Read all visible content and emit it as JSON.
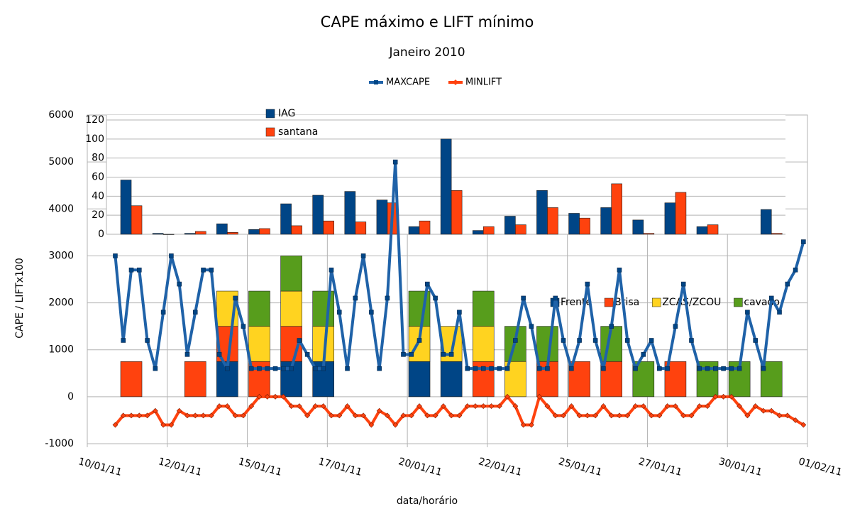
{
  "chart_data": [
    {
      "type": "line",
      "title": "CAPE máximo e LIFT mínimo",
      "subtitle": "Janeiro 2010",
      "x_label": "data/horário",
      "y_label": "CAPE / LIFTx100",
      "xlim": [
        10,
        32.5
      ],
      "xticks": [
        {
          "value": 10,
          "label": "10/01/11"
        },
        {
          "value": 12.5,
          "label": "12/01/11"
        },
        {
          "value": 15,
          "label": "15/01/11"
        },
        {
          "value": 17.5,
          "label": "17/01/11"
        },
        {
          "value": 20,
          "label": "20/01/11"
        },
        {
          "value": 22.5,
          "label": "22/01/11"
        },
        {
          "value": 25,
          "label": "25/01/11"
        },
        {
          "value": 27.5,
          "label": "27/01/11"
        },
        {
          "value": 30,
          "label": "30/01/11"
        },
        {
          "value": 32.5,
          "label": "01/02/11"
        }
      ],
      "ylim": [
        -1000,
        6000
      ],
      "yticks": [
        -1000,
        0,
        1000,
        2000,
        3000,
        4000,
        5000,
        6000
      ],
      "grid": true,
      "x": [
        10.875,
        11.125,
        11.375,
        11.625,
        11.875,
        12.125,
        12.375,
        12.625,
        12.875,
        13.125,
        13.375,
        13.625,
        13.875,
        14.125,
        14.375,
        14.625,
        14.875,
        15.125,
        15.375,
        15.625,
        15.875,
        16.125,
        16.375,
        16.625,
        16.875,
        17.125,
        17.375,
        17.625,
        17.875,
        18.125,
        18.375,
        18.625,
        18.875,
        19.125,
        19.375,
        19.625,
        19.875,
        20.125,
        20.375,
        20.625,
        20.875,
        21.125,
        21.375,
        21.625,
        21.875,
        22.125,
        22.375,
        22.625,
        22.875,
        23.125,
        23.375,
        23.625,
        23.875,
        24.125,
        24.375,
        24.625,
        24.875,
        25.125,
        25.375,
        25.625,
        25.875,
        26.125,
        26.375,
        26.625,
        26.875,
        27.125,
        27.375,
        27.625,
        27.875,
        28.125,
        28.375,
        28.625,
        28.875,
        29.125,
        29.375,
        29.625,
        29.875,
        30.125,
        30.375,
        30.625,
        30.875,
        31.125,
        31.375,
        31.625,
        31.875,
        32.125,
        32.375
      ],
      "series": [
        {
          "name": "MAXCAPE",
          "color": "#004586",
          "values": [
            3000,
            1200,
            2700,
            2700,
            1200,
            600,
            1800,
            3000,
            2400,
            900,
            1800,
            2700,
            2700,
            900,
            600,
            2100,
            1500,
            600,
            600,
            600,
            600,
            600,
            600,
            1200,
            900,
            600,
            600,
            2700,
            1800,
            600,
            2100,
            3000,
            1800,
            600,
            2100,
            5000,
            900,
            900,
            1200,
            2400,
            2100,
            900,
            900,
            1800,
            600,
            600,
            600,
            600,
            600,
            600,
            1200,
            2100,
            1500,
            600,
            600,
            2100,
            1200,
            600,
            1200,
            2400,
            1200,
            600,
            1500,
            2700,
            1200,
            600,
            900,
            1200,
            600,
            600,
            1500,
            2400,
            1200,
            600,
            600,
            600,
            600,
            600,
            600,
            1800,
            1200,
            600,
            2100,
            1800,
            2400,
            2700,
            3300
          ]
        },
        {
          "name": "MINLIFT",
          "color": "#ff420e",
          "values": [
            -600,
            -400,
            -400,
            -400,
            -400,
            -300,
            -600,
            -600,
            -300,
            -400,
            -400,
            -400,
            -400,
            -200,
            -200,
            -400,
            -400,
            -200,
            0,
            0,
            0,
            0,
            -200,
            -200,
            -400,
            -200,
            -200,
            -400,
            -400,
            -200,
            -400,
            -400,
            -600,
            -300,
            -400,
            -600,
            -400,
            -400,
            -200,
            -400,
            -400,
            -200,
            -400,
            -400,
            -200,
            -200,
            -200,
            -200,
            -200,
            0,
            -200,
            -600,
            -600,
            0,
            -200,
            -400,
            -400,
            -200,
            -400,
            -400,
            -400,
            -200,
            -400,
            -400,
            -400,
            -200,
            -200,
            -400,
            -400,
            -200,
            -200,
            -400,
            -400,
            -200,
            -200,
            0,
            0,
            0,
            -200,
            -400,
            -200,
            -300,
            -300,
            -400,
            -400,
            -500,
            -600
          ]
        }
      ]
    },
    {
      "type": "stacked_bar",
      "x": [
        11.375,
        12.375,
        13.375,
        14.375,
        15.375,
        16.375,
        17.375,
        18.375,
        19.375,
        20.375,
        21.375,
        22.375,
        23.375,
        24.375,
        25.375,
        26.375,
        27.375,
        28.375,
        29.375,
        30.375,
        31.375
      ],
      "series": [
        {
          "name": "Frente",
          "color": "#004586",
          "values": [
            null,
            null,
            null,
            750,
            null,
            750,
            750,
            null,
            null,
            750,
            750,
            null,
            null,
            null,
            null,
            null,
            null,
            null,
            null,
            null,
            null
          ]
        },
        {
          "name": "Brisa",
          "color": "#ff420e",
          "values": [
            750,
            null,
            750,
            750,
            750,
            750,
            null,
            null,
            null,
            null,
            null,
            750,
            null,
            750,
            750,
            750,
            null,
            750,
            null,
            null,
            null
          ]
        },
        {
          "name": "ZCAS/ZCOU",
          "color": "#ffd320",
          "values": [
            null,
            null,
            null,
            750,
            750,
            750,
            750,
            null,
            null,
            750,
            750,
            750,
            750,
            null,
            null,
            null,
            null,
            null,
            null,
            null,
            null
          ]
        },
        {
          "name": "cavado",
          "color": "#579d1c",
          "values": [
            null,
            null,
            null,
            null,
            750,
            750,
            750,
            null,
            null,
            750,
            null,
            750,
            750,
            750,
            null,
            750,
            750,
            null,
            750,
            750,
            750
          ]
        }
      ]
    },
    {
      "type": "bar",
      "x": [
        11.375,
        12.375,
        13.375,
        14.375,
        15.375,
        16.375,
        17.375,
        18.375,
        19.375,
        20.375,
        21.375,
        22.375,
        23.375,
        24.375,
        25.375,
        26.375,
        27.375,
        28.375,
        29.375,
        30.375,
        31.375
      ],
      "ylim": [
        0,
        120
      ],
      "yticks": [
        0,
        20,
        40,
        60,
        80,
        100,
        120
      ],
      "grid": true,
      "series": [
        {
          "name": "IAG",
          "color": "#004586",
          "values": [
            57,
            1,
            1,
            11,
            5,
            32,
            41,
            45,
            36,
            8,
            100,
            4,
            19,
            46,
            22,
            28,
            15,
            33,
            8,
            null,
            26
          ]
        },
        {
          "name": "santana",
          "color": "#ff420e",
          "values": [
            30,
            0,
            3,
            2,
            6,
            9,
            14,
            13,
            33,
            14,
            46,
            8,
            10,
            28,
            17,
            53,
            1,
            44,
            10,
            null,
            1
          ]
        }
      ]
    }
  ]
}
